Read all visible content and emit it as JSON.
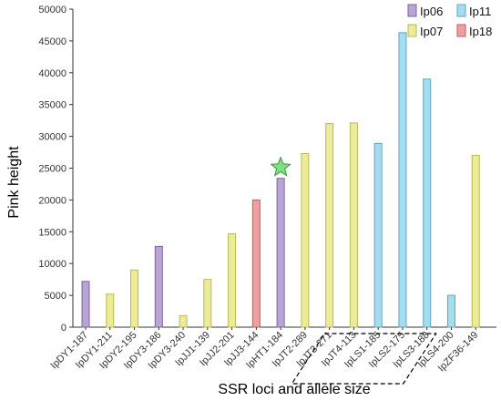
{
  "chart_data": {
    "type": "bar",
    "xlabel": "SSR loci and allele size",
    "ylabel": "Pink height",
    "ylim": [
      0,
      50000
    ],
    "yticks": [
      0,
      5000,
      10000,
      15000,
      20000,
      25000,
      30000,
      35000,
      40000,
      45000,
      50000
    ],
    "categories": [
      "IpDY1-187",
      "IpDY1-211",
      "IpDY2-195",
      "IpDY3-186",
      "IpDY3-240",
      "IpJJ1-139",
      "IpJJ2-201",
      "IpJJ3-144",
      "IpHT1-184",
      "IpJT2-289",
      "IpJT3-271",
      "IpJT4-113",
      "IpLS1-185",
      "IpLS2-175",
      "IpLS3-188",
      "IpLS4-200",
      "IpZF36-149"
    ],
    "values": [
      7200,
      5200,
      9000,
      12700,
      1800,
      7500,
      14700,
      20000,
      23400,
      27300,
      32000,
      32100,
      28900,
      46300,
      39000,
      5000,
      27000
    ],
    "groups": [
      "Ip06",
      "Ip07",
      "Ip07",
      "Ip06",
      "Ip07",
      "Ip07",
      "Ip07",
      "Ip18",
      "Ip06",
      "Ip07",
      "Ip07",
      "Ip07",
      "Ip11",
      "Ip11",
      "Ip11",
      "Ip11",
      "Ip07"
    ],
    "legend": [
      {
        "name": "Ip06",
        "color": "#b9a5d3"
      },
      {
        "name": "Ip11",
        "color": "#a6dcec"
      },
      {
        "name": "Ip07",
        "color": "#ecec98"
      },
      {
        "name": "Ip18",
        "color": "#ef9f9f"
      }
    ],
    "legend_position": "top-right",
    "star_marker_on": "IpHT1-184",
    "dashed_box_around": [
      "IpJT4-113",
      "IpLS1-185",
      "IpLS2-175",
      "IpLS3-188"
    ]
  }
}
